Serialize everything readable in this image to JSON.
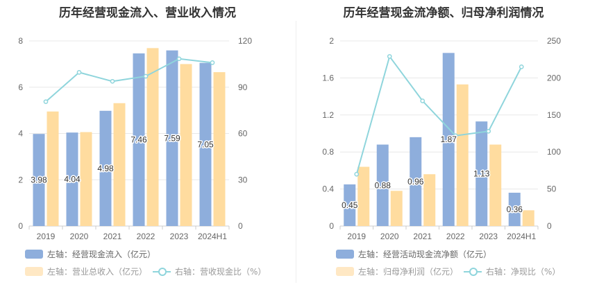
{
  "colors": {
    "bar1": "#8eaedc",
    "bar2": "#ffdc9f",
    "line": "#8fd5dc",
    "grid": "#e8e8e8",
    "axis": "#cccccc",
    "tick": "#666666"
  },
  "chart_data": [
    {
      "type": "bar",
      "title": "历年经营现金流入、营业收入情况",
      "categories": [
        "2019",
        "2020",
        "2021",
        "2022",
        "2023",
        "2024H1"
      ],
      "left_axis": {
        "ylim": [
          0,
          8
        ],
        "ticks": [
          "0",
          "2",
          "4",
          "6",
          "8"
        ]
      },
      "right_axis": {
        "ylim": [
          0,
          120
        ],
        "ticks": [
          "0",
          "30",
          "60",
          "90",
          "120"
        ]
      },
      "series": [
        {
          "name": "左轴：经营现金流入（亿元）",
          "kind": "bar",
          "axis": "left",
          "values": [
            3.98,
            4.04,
            4.98,
            7.46,
            7.59,
            7.05
          ],
          "labels": [
            "3.98",
            "4.04",
            "4.98",
            "7.46",
            "7.59",
            "7.05"
          ]
        },
        {
          "name": "左轴：营业总收入（亿元）",
          "kind": "bar",
          "axis": "left",
          "values": [
            4.95,
            4.06,
            5.31,
            7.69,
            7.0,
            6.65
          ]
        },
        {
          "name": "右轴：营收现金比（%）",
          "kind": "line",
          "axis": "right",
          "values": [
            80.6,
            99.6,
            93.8,
            97.1,
            108.4,
            105.9
          ]
        }
      ]
    },
    {
      "type": "bar",
      "title": "历年经营现金流净额、归母净利润情况",
      "categories": [
        "2019",
        "2020",
        "2021",
        "2022",
        "2023",
        "2024H1"
      ],
      "left_axis": {
        "ylim": [
          0,
          2
        ],
        "ticks": [
          "0",
          "0.4",
          "0.8",
          "1.2",
          "1.6",
          "2"
        ]
      },
      "right_axis": {
        "ylim": [
          0,
          250
        ],
        "ticks": [
          "0",
          "50",
          "100",
          "150",
          "200",
          "250"
        ]
      },
      "series": [
        {
          "name": "左轴：经营活动现金流净额（亿元）",
          "kind": "bar",
          "axis": "left",
          "values": [
            0.45,
            0.88,
            0.96,
            1.87,
            1.13,
            0.36
          ],
          "labels": [
            "0.45",
            "0.88",
            "0.96",
            "1.87",
            "1.13",
            "0.36"
          ]
        },
        {
          "name": "左轴：归母净利润（亿元）",
          "kind": "bar",
          "axis": "left",
          "values": [
            0.64,
            0.38,
            0.56,
            1.53,
            0.88,
            0.17
          ]
        },
        {
          "name": "右轴：净现比（%）",
          "kind": "line",
          "axis": "right",
          "values": [
            70,
            229,
            169,
            122,
            128,
            215
          ]
        }
      ]
    }
  ]
}
